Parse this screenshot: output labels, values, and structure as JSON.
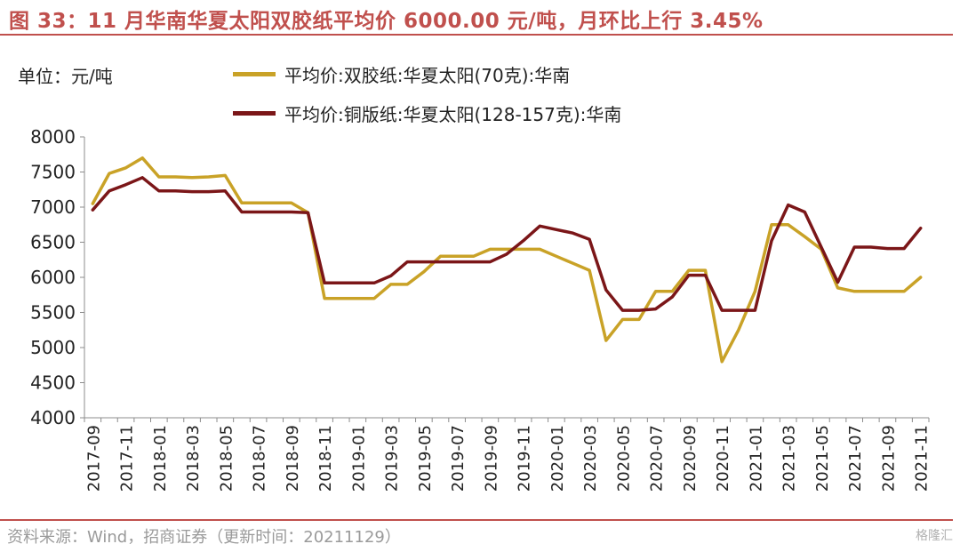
{
  "title": "图 33：11 月华南华夏太阳双胶纸平均价 6000.00 元/吨，月环比上行 3.45%",
  "unit_label": "单位：元/吨",
  "source": "资料来源：Wind，招商证券（更新时间：20211129）",
  "watermark": "格隆汇",
  "colors": {
    "accent": "#c0504d",
    "series1": "#c9a227",
    "series2": "#7b1618"
  },
  "chart_data": {
    "type": "line",
    "ylim": [
      4000,
      8000
    ],
    "yticks": [
      4000,
      4500,
      5000,
      5500,
      6000,
      6500,
      7000,
      7500,
      8000
    ],
    "x": [
      "2017-09",
      "2017-10",
      "2017-11",
      "2017-12",
      "2018-01",
      "2018-02",
      "2018-03",
      "2018-04",
      "2018-05",
      "2018-06",
      "2018-07",
      "2018-08",
      "2018-09",
      "2018-10",
      "2018-11",
      "2018-12",
      "2019-01",
      "2019-02",
      "2019-03",
      "2019-04",
      "2019-05",
      "2019-06",
      "2019-07",
      "2019-08",
      "2019-09",
      "2019-10",
      "2019-11",
      "2019-12",
      "2020-01",
      "2020-02",
      "2020-03",
      "2020-04",
      "2020-05",
      "2020-06",
      "2020-07",
      "2020-08",
      "2020-09",
      "2020-10",
      "2020-11",
      "2020-12",
      "2021-01",
      "2021-02",
      "2021-03",
      "2021-04",
      "2021-05",
      "2021-06",
      "2021-07",
      "2021-08",
      "2021-09",
      "2021-10",
      "2021-11"
    ],
    "xticks": [
      "2017-09",
      "2017-11",
      "2018-01",
      "2018-03",
      "2018-05",
      "2018-07",
      "2018-09",
      "2018-11",
      "2019-01",
      "2019-03",
      "2019-05",
      "2019-07",
      "2019-09",
      "2019-11",
      "2020-01",
      "2020-03",
      "2020-05",
      "2020-07",
      "2020-09",
      "2020-11",
      "2021-01",
      "2021-03",
      "2021-05",
      "2021-07",
      "2021-09",
      "2021-11"
    ],
    "series": [
      {
        "name": "平均价:双胶纸:华夏太阳(70克):华南",
        "color": "#c9a227",
        "values": [
          7050,
          7480,
          7560,
          7700,
          7430,
          7430,
          7420,
          7430,
          7450,
          7060,
          7060,
          7060,
          7060,
          6920,
          5700,
          5700,
          5700,
          5700,
          5900,
          5900,
          6080,
          6300,
          6300,
          6300,
          6400,
          6400,
          6400,
          6400,
          6300,
          6200,
          6100,
          5100,
          5400,
          5400,
          5800,
          5800,
          6100,
          6100,
          4800,
          5250,
          5800,
          6750,
          6750,
          6580,
          6400,
          5850,
          5800,
          5800,
          5800,
          5800,
          6000
        ]
      },
      {
        "name": "平均价:铜版纸:华夏太阳(128-157克):华南",
        "color": "#7b1618",
        "values": [
          6960,
          7230,
          7320,
          7420,
          7230,
          7230,
          7220,
          7220,
          7230,
          6930,
          6930,
          6930,
          6930,
          6920,
          5920,
          5920,
          5920,
          5920,
          6020,
          6220,
          6220,
          6220,
          6220,
          6220,
          6220,
          6330,
          6520,
          6730,
          6680,
          6630,
          6540,
          5820,
          5530,
          5530,
          5550,
          5720,
          6030,
          6030,
          5530,
          5530,
          5530,
          6520,
          7030,
          6930,
          6430,
          5930,
          6430,
          6430,
          6410,
          6410,
          6700
        ]
      }
    ]
  }
}
